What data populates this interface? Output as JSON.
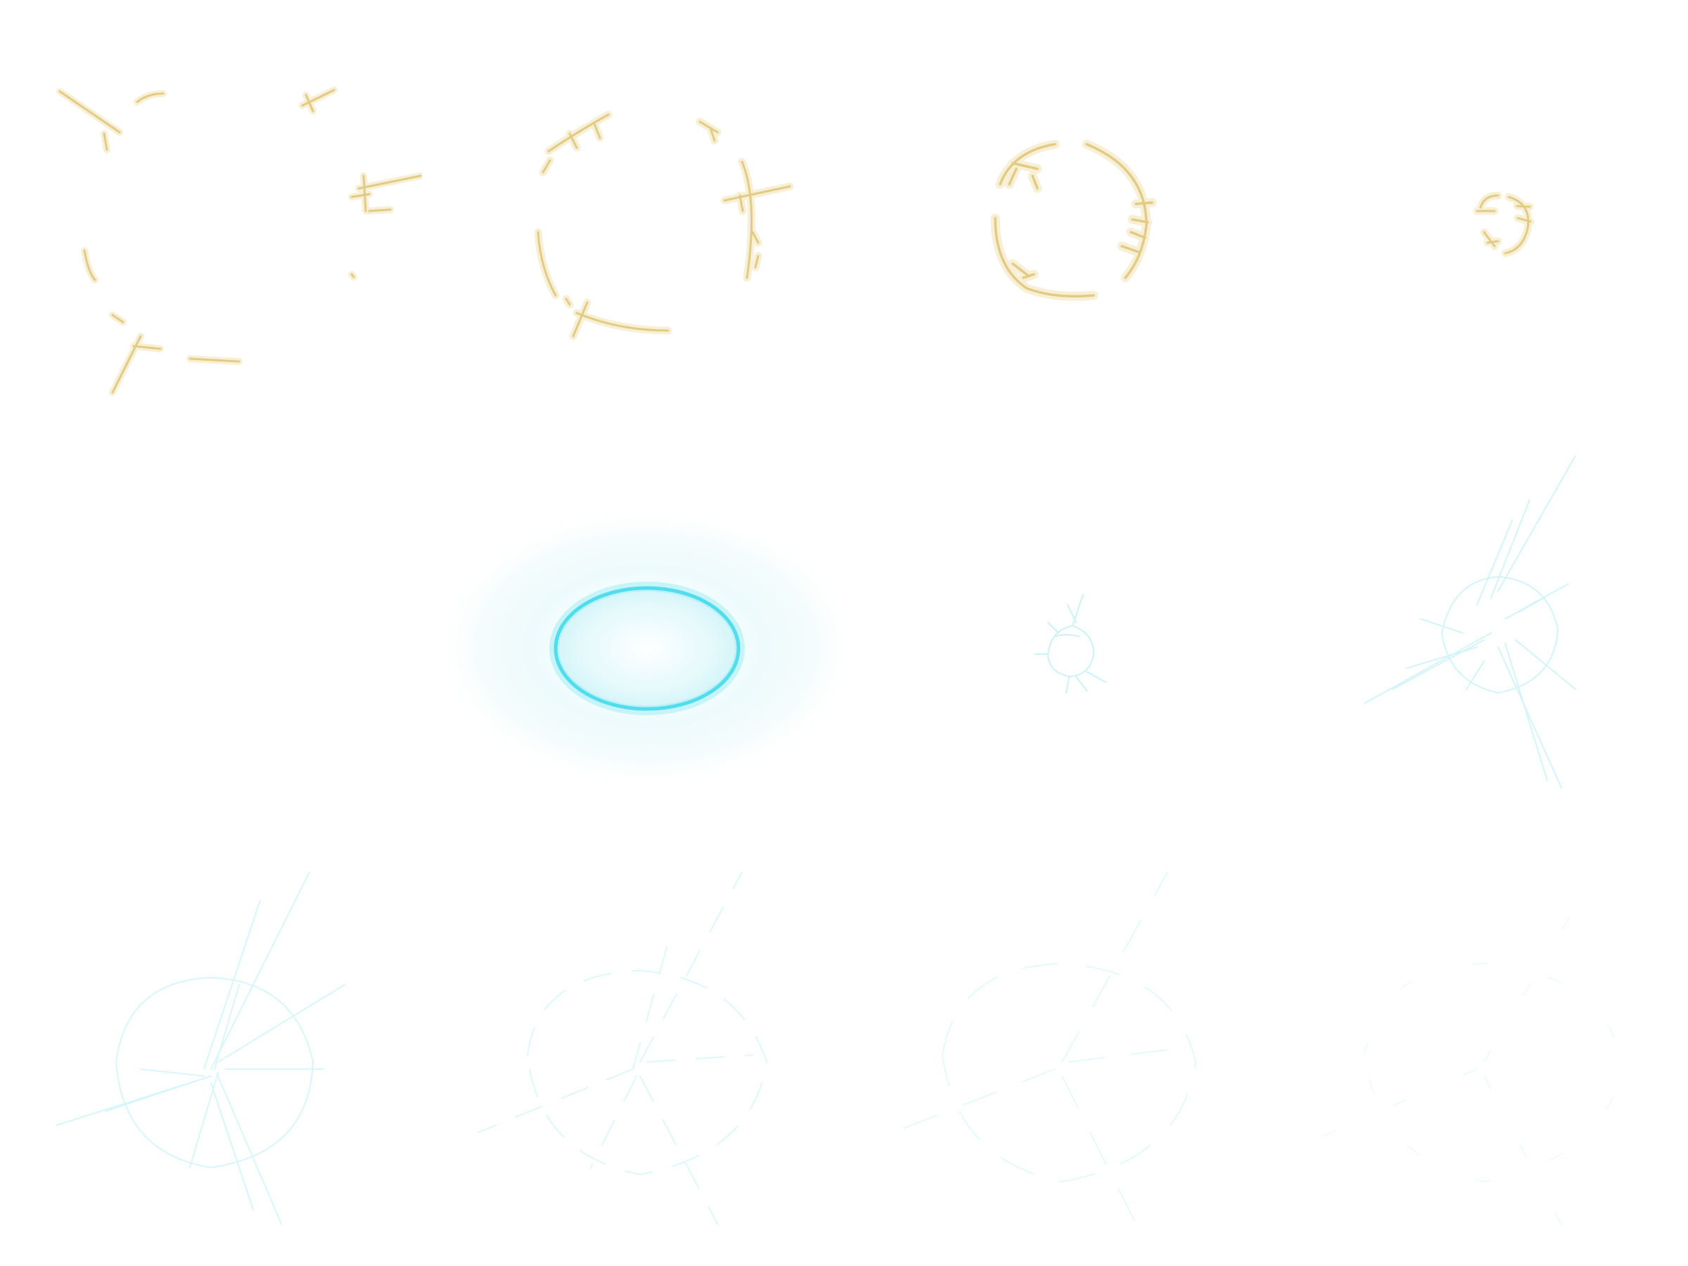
{
  "sheet": {
    "background": "#ffffff",
    "columns": 4,
    "rows": 3,
    "colors": {
      "gold_stroke": "#e2cc84",
      "gold_glow": "#f7eed2",
      "cyan_core": "#3fd9ea",
      "cyan_soft": "#c9f3f8",
      "cyan_faint": "#d8f6f9"
    },
    "frames": [
      {
        "name": "gold-ring-frame-1",
        "palette": "gold",
        "stage": 1
      },
      {
        "name": "gold-ring-frame-2",
        "palette": "gold",
        "stage": 2
      },
      {
        "name": "gold-ring-frame-3",
        "palette": "gold",
        "stage": 3
      },
      {
        "name": "gold-ring-frame-4",
        "palette": "gold",
        "stage": 4
      },
      {
        "name": "empty-frame",
        "palette": "none",
        "stage": 0
      },
      {
        "name": "cyan-glow-ellipse-frame",
        "palette": "cyan",
        "stage": 1
      },
      {
        "name": "cyan-small-burst-frame",
        "palette": "cyan",
        "stage": 2
      },
      {
        "name": "cyan-spike-burst-frame",
        "palette": "cyan",
        "stage": 3
      },
      {
        "name": "cyan-fading-burst-frame-1",
        "palette": "cyan",
        "stage": 4
      },
      {
        "name": "cyan-fading-burst-frame-2",
        "palette": "cyan",
        "stage": 5
      },
      {
        "name": "cyan-fading-burst-frame-3",
        "palette": "cyan",
        "stage": 6
      },
      {
        "name": "cyan-fading-burst-frame-4",
        "palette": "cyan",
        "stage": 7
      }
    ]
  }
}
